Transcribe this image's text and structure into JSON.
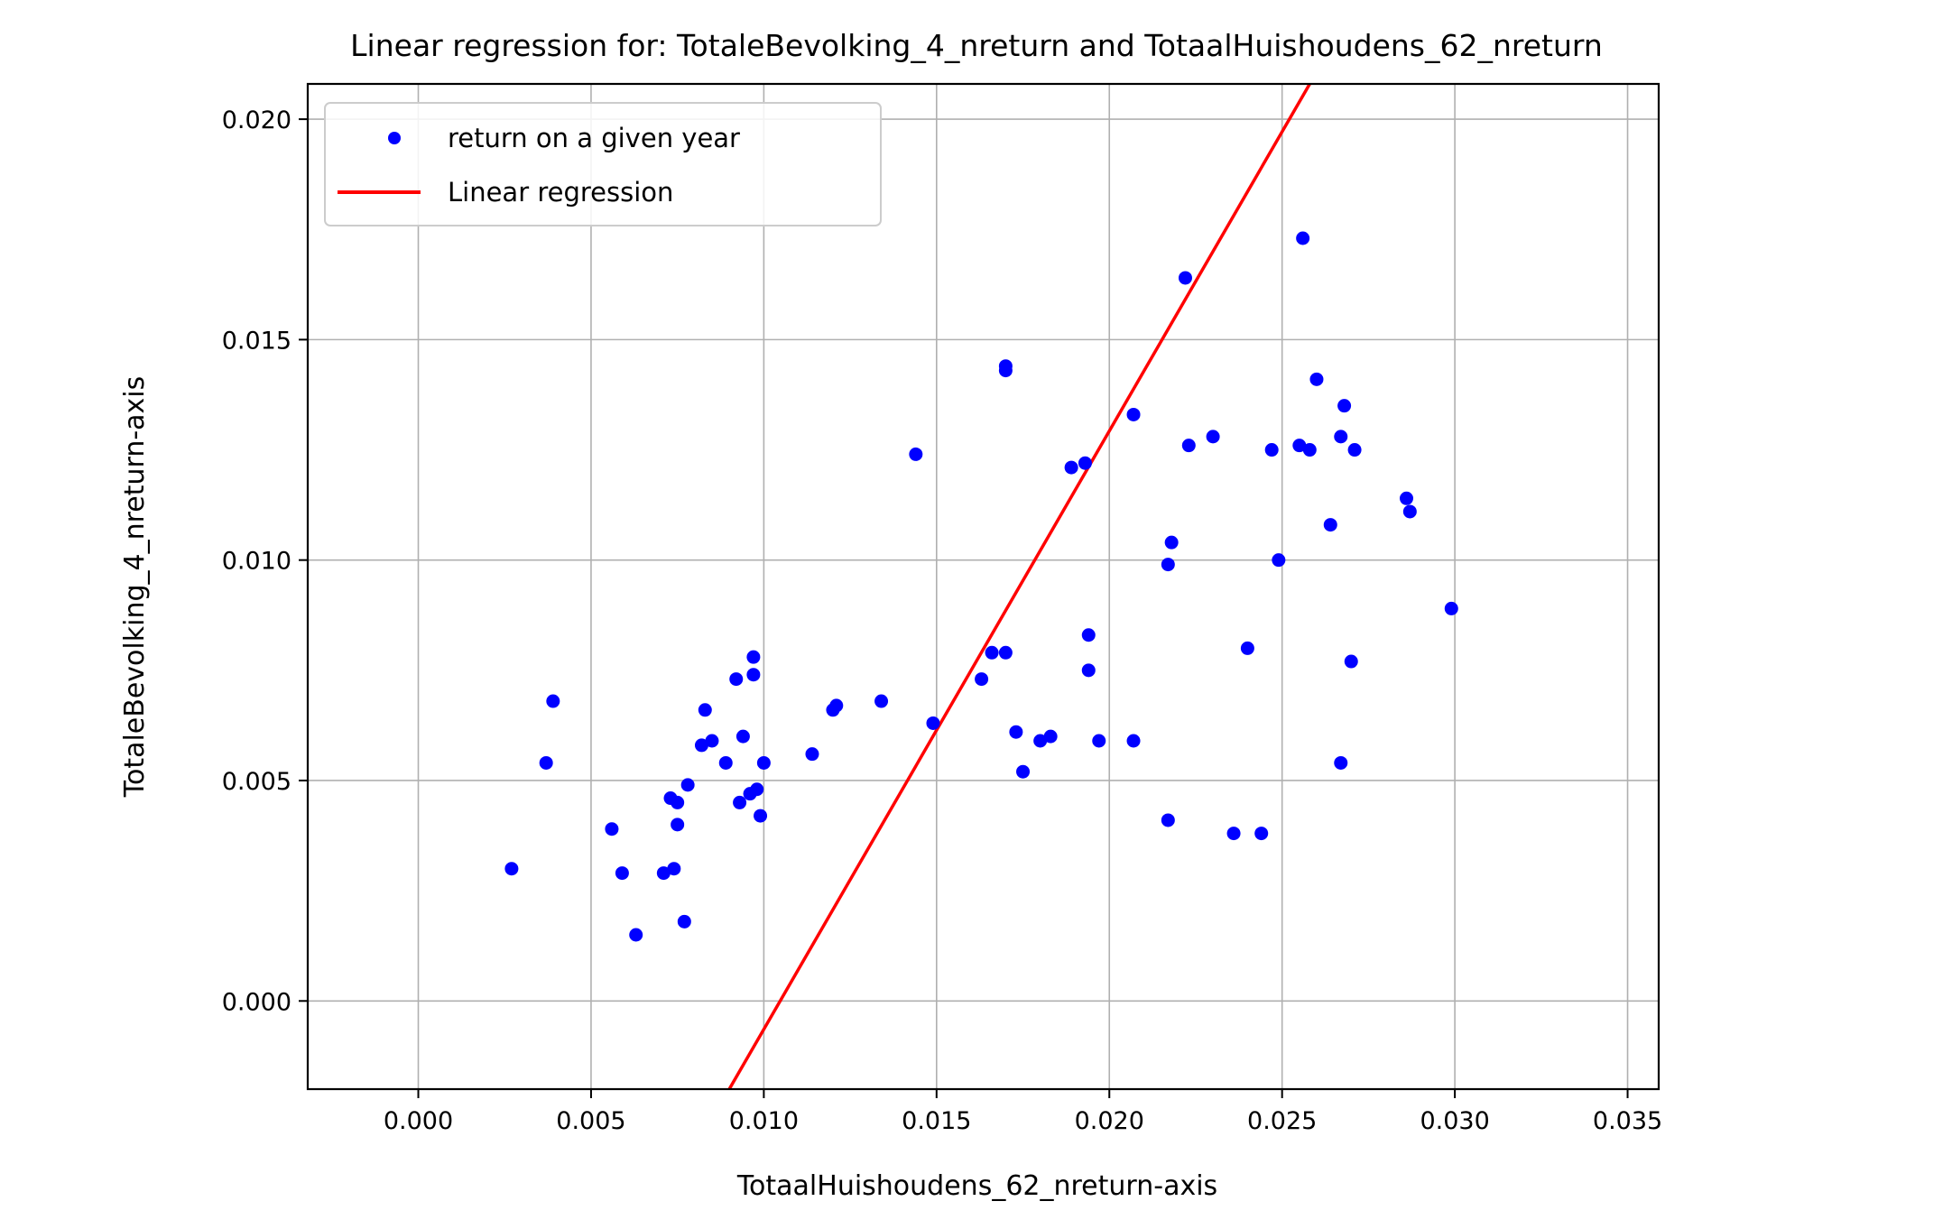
{
  "chart_data": {
    "type": "scatter",
    "title": "Linear regression for: TotaleBevolking_4_nreturn and TotaalHuishoudens_62_nreturn",
    "xlabel": "TotaalHuishoudens_62_nreturn-axis",
    "ylabel": "TotaleBevolking_4_nreturn-axis",
    "xlim": [
      -0.0032,
      0.0359
    ],
    "ylim": [
      -0.002,
      0.0208
    ],
    "x_ticks": [
      0.0,
      0.005,
      0.01,
      0.015,
      0.02,
      0.025,
      0.03,
      0.035
    ],
    "x_tick_labels": [
      "0.000",
      "0.005",
      "0.010",
      "0.015",
      "0.020",
      "0.025",
      "0.030",
      "0.035"
    ],
    "y_ticks": [
      0.0,
      0.005,
      0.01,
      0.015,
      0.02
    ],
    "y_tick_labels": [
      "0.000",
      "0.005",
      "0.010",
      "0.015",
      "0.020"
    ],
    "grid": true,
    "legend_position": "top-left",
    "series": [
      {
        "name": "return on a given year",
        "kind": "scatter",
        "color": "#0000ff",
        "points": [
          [
            0.0027,
            0.003
          ],
          [
            0.0037,
            0.0054
          ],
          [
            0.0039,
            0.0068
          ],
          [
            0.0056,
            0.0039
          ],
          [
            0.0059,
            0.0029
          ],
          [
            0.0063,
            0.0015
          ],
          [
            0.0071,
            0.0029
          ],
          [
            0.0073,
            0.0046
          ],
          [
            0.0074,
            0.003
          ],
          [
            0.0075,
            0.0045
          ],
          [
            0.0075,
            0.004
          ],
          [
            0.0077,
            0.0018
          ],
          [
            0.0078,
            0.0049
          ],
          [
            0.0082,
            0.0058
          ],
          [
            0.0083,
            0.0066
          ],
          [
            0.0085,
            0.0059
          ],
          [
            0.0089,
            0.0054
          ],
          [
            0.0092,
            0.0073
          ],
          [
            0.0093,
            0.0045
          ],
          [
            0.0094,
            0.006
          ],
          [
            0.0096,
            0.0047
          ],
          [
            0.0097,
            0.0078
          ],
          [
            0.0097,
            0.0074
          ],
          [
            0.0098,
            0.0048
          ],
          [
            0.0099,
            0.0042
          ],
          [
            0.01,
            0.0054
          ],
          [
            0.0114,
            0.0056
          ],
          [
            0.012,
            0.0066
          ],
          [
            0.0121,
            0.0067
          ],
          [
            0.0134,
            0.0068
          ],
          [
            0.0144,
            0.0124
          ],
          [
            0.0149,
            0.0063
          ],
          [
            0.0163,
            0.0073
          ],
          [
            0.0166,
            0.0079
          ],
          [
            0.017,
            0.0079
          ],
          [
            0.017,
            0.0144
          ],
          [
            0.017,
            0.0143
          ],
          [
            0.0173,
            0.0061
          ],
          [
            0.0175,
            0.0052
          ],
          [
            0.018,
            0.0059
          ],
          [
            0.0183,
            0.006
          ],
          [
            0.0189,
            0.0121
          ],
          [
            0.0193,
            0.0122
          ],
          [
            0.0194,
            0.0083
          ],
          [
            0.0194,
            0.0075
          ],
          [
            0.0197,
            0.0059
          ],
          [
            0.0207,
            0.0133
          ],
          [
            0.0207,
            0.0059
          ],
          [
            0.0217,
            0.0041
          ],
          [
            0.0217,
            0.0099
          ],
          [
            0.0218,
            0.0104
          ],
          [
            0.0222,
            0.0164
          ],
          [
            0.0223,
            0.0126
          ],
          [
            0.023,
            0.0128
          ],
          [
            0.0236,
            0.0038
          ],
          [
            0.024,
            0.008
          ],
          [
            0.0244,
            0.0038
          ],
          [
            0.0247,
            0.0125
          ],
          [
            0.0249,
            0.01
          ],
          [
            0.0255,
            0.0126
          ],
          [
            0.0256,
            0.0173
          ],
          [
            0.0258,
            0.0125
          ],
          [
            0.026,
            0.0141
          ],
          [
            0.0264,
            0.0108
          ],
          [
            0.0267,
            0.0128
          ],
          [
            0.0267,
            0.0054
          ],
          [
            0.0268,
            0.0135
          ],
          [
            0.027,
            0.0077
          ],
          [
            0.0271,
            0.0125
          ],
          [
            0.0286,
            0.0114
          ],
          [
            0.0287,
            0.0111
          ],
          [
            0.0299,
            0.0089
          ]
        ]
      },
      {
        "name": "Linear regression",
        "kind": "line",
        "color": "#ff0000",
        "points": [
          [
            0.009,
            -0.002
          ],
          [
            0.0258,
            0.0208
          ]
        ]
      }
    ]
  }
}
